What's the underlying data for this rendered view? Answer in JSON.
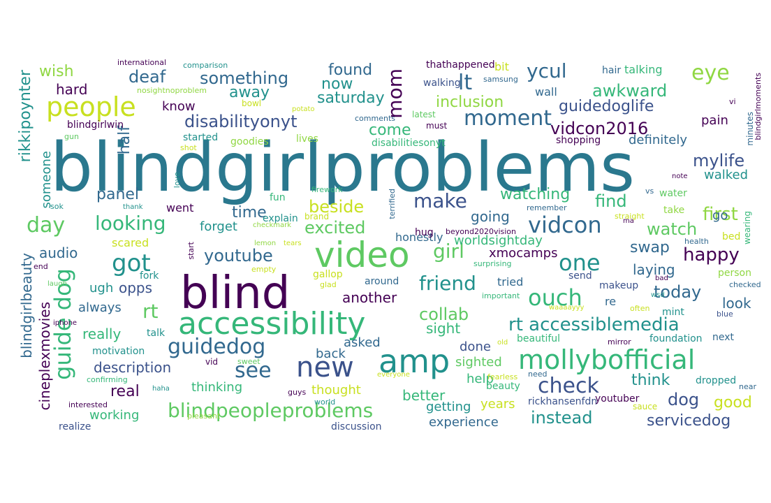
{
  "palette": {
    "dark_purple": "#440154",
    "indigo": "#3b528b",
    "slate_blue": "#31688e",
    "teal": "#21918c",
    "sea_green": "#35b779",
    "green": "#5ec962",
    "yellow_green": "#90d743",
    "yellow": "#c8e020"
  },
  "words": [
    "blindgirlproblems",
    "blind",
    "video",
    "accessibility",
    "amp",
    "new",
    "guidedog",
    "mollybofficial",
    "people",
    "guide dog",
    "got",
    "vidcon",
    "rt accessiblemedia",
    "check",
    "one",
    "ouch",
    "blindpeopleproblems",
    "see",
    "moment",
    "day",
    "make",
    "looking",
    "eye",
    "friend",
    "girl",
    "rt",
    "first",
    "youtube",
    "today",
    "lt",
    "ycul",
    "awkward",
    "mom",
    "something",
    "deaf",
    "disabilityonyt",
    "vidcon2016",
    "guidedoglife",
    "mylife",
    "happy",
    "instead",
    "servicedog",
    "collab",
    "dog",
    "excited",
    "beside",
    "watch",
    "find",
    "watching",
    "time",
    "panel",
    "inclusion",
    "saturday",
    "come",
    "found",
    "now",
    "wish",
    "hard",
    "away",
    "know",
    "half",
    "rikkipoynter",
    "worldsightday",
    "xmocamps",
    "swap",
    "laying",
    "look",
    "good",
    "think",
    "audio",
    "opps",
    "going",
    "another",
    "sight",
    "description",
    "real",
    "thinking",
    "better",
    "help",
    "sighted",
    "years",
    "experience",
    "getting",
    "working",
    "thought",
    "done",
    "asked",
    "back",
    "really",
    "always",
    "ugh",
    "blindgirlbeauty",
    "cineplexmovies",
    "someone",
    "go",
    "walked",
    "pain",
    "definitely",
    "forget",
    "honestly",
    "hug",
    "talking",
    "hair",
    "bit",
    "walking",
    "wall",
    "thathappened",
    "international",
    "comparison",
    "samsung",
    "nosightnoproblem",
    "bowl",
    "potato",
    "comments",
    "latest",
    "must",
    "blindgirlwin",
    "gun",
    "started",
    "goodies",
    "lives",
    "disabilitiesonyt",
    "shopping",
    "shot",
    "explain",
    "brand",
    "checkmark",
    "lemon",
    "tears",
    "fun",
    "firework",
    "terrified",
    "beyond2020vision",
    "remember",
    "straight",
    "take",
    "water",
    "note",
    "minutes",
    "blindgirlmoments",
    "vi",
    "ma",
    "health",
    "bed",
    "wearing",
    "person",
    "vs",
    "love",
    "thank",
    "sok",
    "went",
    "scared",
    "start",
    "empty",
    "gallop",
    "glad",
    "around",
    "surprising",
    "important",
    "send",
    "makeup",
    "bad",
    "wsd",
    "checked",
    "re",
    "tried",
    "waaaayyy",
    "often",
    "mint",
    "blue",
    "fork",
    "end",
    "laugh",
    "iphone",
    "talk",
    "motivation",
    "vid",
    "sweet",
    "old",
    "beautiful",
    "mirror",
    "foundation",
    "next",
    "confirming",
    "haha",
    "everyone",
    "fearless",
    "need",
    "beauty",
    "guys",
    "world",
    "pleasant",
    "interested",
    "realize",
    "discussion",
    "rickhansenfdn",
    "youtuber",
    "sauce",
    "dropped",
    "near",
    "wow"
  ]
}
